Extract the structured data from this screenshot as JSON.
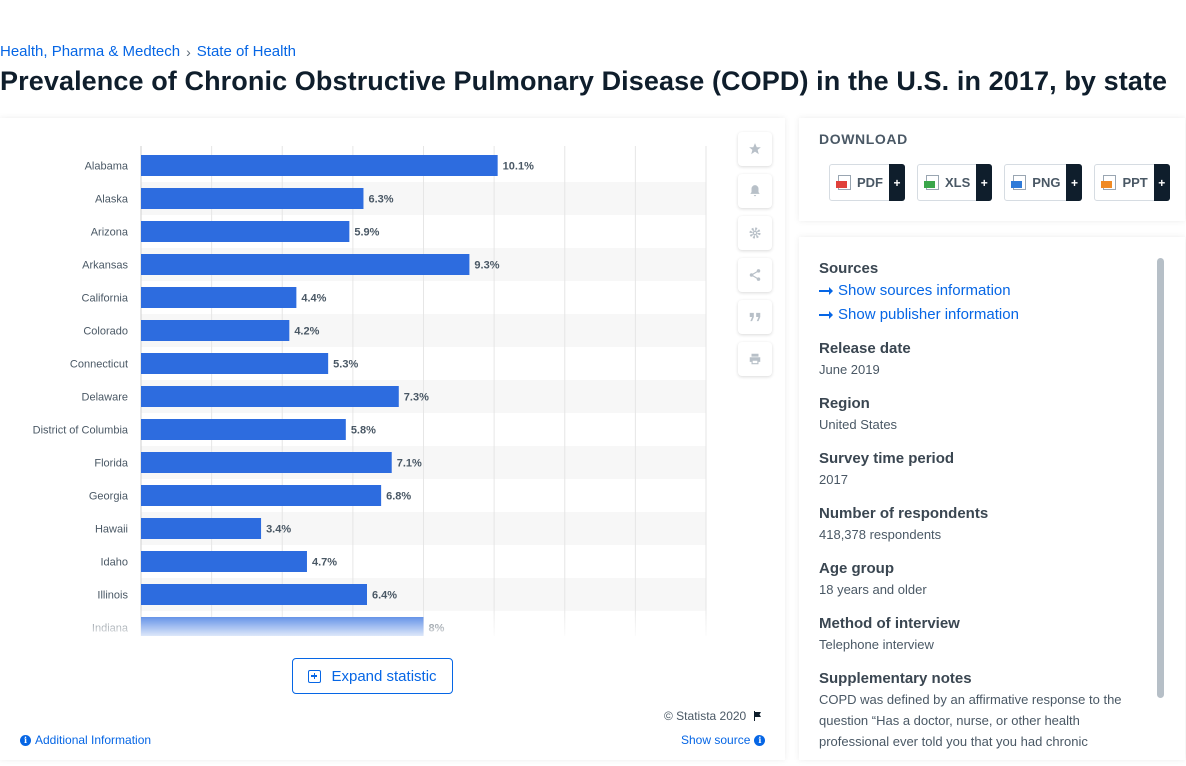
{
  "breadcrumb": {
    "item1": "Health, Pharma & Medtech",
    "separator": "›",
    "item2": "State of Health"
  },
  "page_title": "Prevalence of Chronic Obstructive Pulmonary Disease (COPD) in the U.S. in 2017, by state",
  "colors": {
    "bar": "#2d6cdf",
    "link": "#0666e5",
    "title": "#0f1e2c"
  },
  "side_tools": [
    "star-icon",
    "bell-icon",
    "gear-icon",
    "share-icon",
    "quote-icon",
    "print-icon"
  ],
  "chart_data": {
    "type": "bar",
    "orientation": "horizontal",
    "categories": [
      "Alabama",
      "Alaska",
      "Arizona",
      "Arkansas",
      "California",
      "Colorado",
      "Connecticut",
      "Delaware",
      "District of Columbia",
      "Florida",
      "Georgia",
      "Hawaii",
      "Idaho",
      "Illinois",
      "Indiana"
    ],
    "values": [
      10.1,
      6.3,
      5.9,
      9.3,
      4.4,
      4.2,
      5.3,
      7.3,
      5.8,
      7.1,
      6.8,
      3.4,
      4.7,
      6.4,
      8
    ],
    "value_labels": [
      "10.1%",
      "6.3%",
      "5.9%",
      "9.3%",
      "4.4%",
      "4.2%",
      "5.3%",
      "7.3%",
      "5.8%",
      "7.1%",
      "6.8%",
      "3.4%",
      "4.7%",
      "6.4%",
      "8%"
    ],
    "xlim": [
      0,
      16
    ],
    "grid": true,
    "title": "",
    "xlabel": "",
    "ylabel": ""
  },
  "expand_label": "Expand statistic",
  "copyright": "© Statista 2020",
  "additional_info": "Additional Information",
  "show_source": "Show source",
  "download": {
    "heading": "DOWNLOAD",
    "buttons": [
      {
        "label": "PDF",
        "color": "#e0403a"
      },
      {
        "label": "XLS",
        "color": "#3aa64a"
      },
      {
        "label": "PNG",
        "color": "#2f7ad8"
      },
      {
        "label": "PPT",
        "color": "#f08a24"
      }
    ],
    "plus": "+"
  },
  "meta": {
    "sources_heading": "Sources",
    "show_sources": "Show sources information",
    "show_publisher": "Show publisher information",
    "release_heading": "Release date",
    "release_value": "June 2019",
    "region_heading": "Region",
    "region_value": "United States",
    "survey_heading": "Survey time period",
    "survey_value": "2017",
    "respondents_heading": "Number of respondents",
    "respondents_value": "418,378 respondents",
    "age_heading": "Age group",
    "age_value": "18 years and older",
    "method_heading": "Method of interview",
    "method_value": "Telephone interview",
    "notes_heading": "Supplementary notes",
    "notes_value": "COPD was defined by an affirmative response to the question “Has a doctor, nurse, or other health professional ever told you that you had chronic"
  }
}
